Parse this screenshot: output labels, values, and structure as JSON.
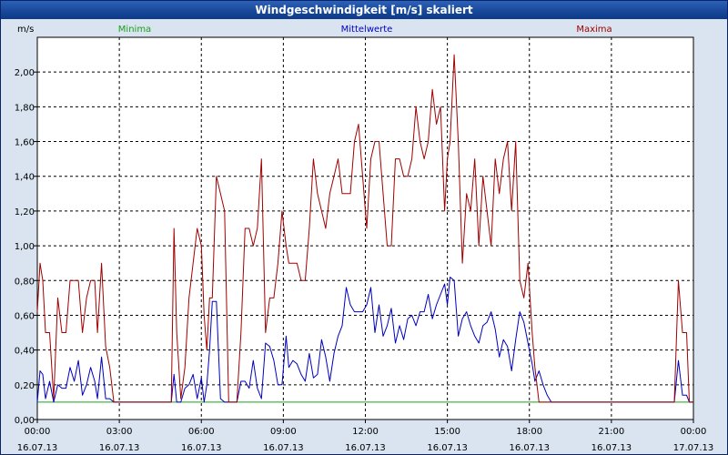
{
  "window": {
    "title": "Windgeschwindigkeit [m/s] skaliert"
  },
  "colors": {
    "minima": "#19a019",
    "mittelwerte": "#0000c0",
    "maxima": "#a00000",
    "background": "#ffffff",
    "grid": "#000000"
  },
  "chart_data": {
    "type": "line",
    "title": "Windgeschwindigkeit [m/s] skaliert",
    "ylabel": "m/s",
    "ylim": [
      0,
      2.2
    ],
    "xlim": [
      "16.07.13 00:00",
      "17.07.13 00:00"
    ],
    "grid": true,
    "yticks": [
      {
        "value": 0.0,
        "label": "0,00"
      },
      {
        "value": 0.2,
        "label": "0,20"
      },
      {
        "value": 0.4,
        "label": "0,40"
      },
      {
        "value": 0.6,
        "label": "0,60"
      },
      {
        "value": 0.8,
        "label": "0,80"
      },
      {
        "value": 1.0,
        "label": "1,00"
      },
      {
        "value": 1.2,
        "label": "1,20"
      },
      {
        "value": 1.4,
        "label": "1,40"
      },
      {
        "value": 1.6,
        "label": "1,60"
      },
      {
        "value": 1.8,
        "label": "1,80"
      },
      {
        "value": 2.0,
        "label": "2,00"
      }
    ],
    "xticks": [
      {
        "hour": 0,
        "time": "00:00",
        "date": "16.07.13"
      },
      {
        "hour": 3,
        "time": "03:00",
        "date": "16.07.13"
      },
      {
        "hour": 6,
        "time": "06:00",
        "date": "16.07.13"
      },
      {
        "hour": 9,
        "time": "09:00",
        "date": "16.07.13"
      },
      {
        "hour": 12,
        "time": "12:00",
        "date": "16.07.13"
      },
      {
        "hour": 15,
        "time": "15:00",
        "date": "16.07.13"
      },
      {
        "hour": 18,
        "time": "18:00",
        "date": "16.07.13"
      },
      {
        "hour": 21,
        "time": "21:00",
        "date": "16.07.13"
      },
      {
        "hour": 24,
        "time": "00:00",
        "date": "17.07.13"
      }
    ],
    "legend": [
      "Minima",
      "Mittelwerte",
      "Maxima"
    ],
    "series": [
      {
        "name": "Minima",
        "color": "#19a019",
        "points": [
          [
            0,
            0.1
          ],
          [
            24,
            0.1
          ]
        ]
      },
      {
        "name": "Mittelwerte",
        "color": "#0000c0",
        "points": [
          [
            0,
            0.1
          ],
          [
            0.1,
            0.28
          ],
          [
            0.2,
            0.26
          ],
          [
            0.3,
            0.12
          ],
          [
            0.45,
            0.22
          ],
          [
            0.6,
            0.1
          ],
          [
            0.75,
            0.2
          ],
          [
            0.9,
            0.18
          ],
          [
            1.05,
            0.18
          ],
          [
            1.2,
            0.3
          ],
          [
            1.35,
            0.22
          ],
          [
            1.5,
            0.34
          ],
          [
            1.65,
            0.14
          ],
          [
            1.8,
            0.2
          ],
          [
            1.95,
            0.3
          ],
          [
            2.1,
            0.22
          ],
          [
            2.2,
            0.12
          ],
          [
            2.35,
            0.36
          ],
          [
            2.5,
            0.12
          ],
          [
            2.65,
            0.12
          ],
          [
            2.8,
            0.1
          ],
          [
            4.9,
            0.1
          ],
          [
            5.0,
            0.26
          ],
          [
            5.1,
            0.1
          ],
          [
            5.25,
            0.1
          ],
          [
            5.4,
            0.18
          ],
          [
            5.55,
            0.2
          ],
          [
            5.7,
            0.26
          ],
          [
            5.85,
            0.12
          ],
          [
            6.0,
            0.24
          ],
          [
            6.1,
            0.1
          ],
          [
            6.2,
            0.2
          ],
          [
            6.3,
            0.4
          ],
          [
            6.4,
            0.68
          ],
          [
            6.55,
            0.68
          ],
          [
            6.7,
            0.12
          ],
          [
            6.85,
            0.1
          ],
          [
            7.3,
            0.1
          ],
          [
            7.45,
            0.22
          ],
          [
            7.6,
            0.22
          ],
          [
            7.75,
            0.18
          ],
          [
            7.9,
            0.34
          ],
          [
            8.05,
            0.18
          ],
          [
            8.2,
            0.12
          ],
          [
            8.35,
            0.44
          ],
          [
            8.5,
            0.42
          ],
          [
            8.65,
            0.34
          ],
          [
            8.8,
            0.2
          ],
          [
            8.95,
            0.2
          ],
          [
            9.1,
            0.48
          ],
          [
            9.2,
            0.3
          ],
          [
            9.35,
            0.34
          ],
          [
            9.5,
            0.32
          ],
          [
            9.65,
            0.26
          ],
          [
            9.8,
            0.22
          ],
          [
            9.95,
            0.38
          ],
          [
            10.1,
            0.24
          ],
          [
            10.25,
            0.26
          ],
          [
            10.4,
            0.46
          ],
          [
            10.55,
            0.36
          ],
          [
            10.7,
            0.22
          ],
          [
            10.85,
            0.38
          ],
          [
            11.0,
            0.48
          ],
          [
            11.15,
            0.54
          ],
          [
            11.3,
            0.76
          ],
          [
            11.45,
            0.66
          ],
          [
            11.6,
            0.62
          ],
          [
            11.75,
            0.62
          ],
          [
            11.9,
            0.62
          ],
          [
            12.05,
            0.66
          ],
          [
            12.2,
            0.76
          ],
          [
            12.35,
            0.5
          ],
          [
            12.5,
            0.66
          ],
          [
            12.65,
            0.48
          ],
          [
            12.8,
            0.54
          ],
          [
            12.95,
            0.64
          ],
          [
            13.1,
            0.44
          ],
          [
            13.25,
            0.54
          ],
          [
            13.4,
            0.46
          ],
          [
            13.55,
            0.58
          ],
          [
            13.7,
            0.6
          ],
          [
            13.85,
            0.54
          ],
          [
            14.0,
            0.62
          ],
          [
            14.15,
            0.62
          ],
          [
            14.3,
            0.72
          ],
          [
            14.45,
            0.58
          ],
          [
            14.6,
            0.66
          ],
          [
            14.75,
            0.72
          ],
          [
            14.9,
            0.78
          ],
          [
            15.0,
            0.66
          ],
          [
            15.1,
            0.82
          ],
          [
            15.25,
            0.8
          ],
          [
            15.4,
            0.48
          ],
          [
            15.55,
            0.58
          ],
          [
            15.7,
            0.62
          ],
          [
            15.85,
            0.54
          ],
          [
            16.0,
            0.48
          ],
          [
            16.15,
            0.44
          ],
          [
            16.3,
            0.54
          ],
          [
            16.45,
            0.56
          ],
          [
            16.6,
            0.62
          ],
          [
            16.75,
            0.52
          ],
          [
            16.9,
            0.36
          ],
          [
            17.05,
            0.46
          ],
          [
            17.2,
            0.42
          ],
          [
            17.35,
            0.28
          ],
          [
            17.5,
            0.46
          ],
          [
            17.65,
            0.62
          ],
          [
            17.8,
            0.56
          ],
          [
            17.95,
            0.44
          ],
          [
            18.1,
            0.32
          ],
          [
            18.2,
            0.22
          ],
          [
            18.35,
            0.28
          ],
          [
            18.5,
            0.2
          ],
          [
            18.65,
            0.14
          ],
          [
            18.8,
            0.1
          ],
          [
            23.3,
            0.1
          ],
          [
            23.45,
            0.34
          ],
          [
            23.6,
            0.14
          ],
          [
            23.75,
            0.14
          ],
          [
            23.85,
            0.1
          ],
          [
            24,
            0.1
          ]
        ]
      },
      {
        "name": "Maxima",
        "color": "#a00000",
        "points": [
          [
            0,
            0.62
          ],
          [
            0.1,
            0.9
          ],
          [
            0.2,
            0.8
          ],
          [
            0.3,
            0.5
          ],
          [
            0.45,
            0.5
          ],
          [
            0.6,
            0.12
          ],
          [
            0.75,
            0.7
          ],
          [
            0.9,
            0.5
          ],
          [
            1.05,
            0.5
          ],
          [
            1.2,
            0.8
          ],
          [
            1.35,
            0.8
          ],
          [
            1.5,
            0.8
          ],
          [
            1.65,
            0.5
          ],
          [
            1.8,
            0.7
          ],
          [
            1.95,
            0.8
          ],
          [
            2.1,
            0.8
          ],
          [
            2.2,
            0.5
          ],
          [
            2.35,
            0.9
          ],
          [
            2.5,
            0.42
          ],
          [
            2.65,
            0.3
          ],
          [
            2.8,
            0.1
          ],
          [
            4.9,
            0.1
          ],
          [
            5.0,
            1.1
          ],
          [
            5.1,
            0.5
          ],
          [
            5.25,
            0.12
          ],
          [
            5.4,
            0.3
          ],
          [
            5.55,
            0.7
          ],
          [
            5.7,
            0.9
          ],
          [
            5.85,
            1.1
          ],
          [
            6.0,
            1.0
          ],
          [
            6.1,
            0.6
          ],
          [
            6.2,
            0.4
          ],
          [
            6.3,
            0.7
          ],
          [
            6.4,
            0.7
          ],
          [
            6.55,
            1.4
          ],
          [
            6.7,
            1.3
          ],
          [
            6.85,
            1.2
          ],
          [
            7.0,
            0.1
          ],
          [
            7.3,
            0.1
          ],
          [
            7.45,
            0.5
          ],
          [
            7.6,
            1.1
          ],
          [
            7.75,
            1.1
          ],
          [
            7.9,
            1.0
          ],
          [
            8.05,
            1.1
          ],
          [
            8.2,
            1.5
          ],
          [
            8.35,
            0.5
          ],
          [
            8.5,
            0.7
          ],
          [
            8.65,
            0.7
          ],
          [
            8.8,
            0.9
          ],
          [
            8.95,
            1.2
          ],
          [
            9.1,
            1.0
          ],
          [
            9.2,
            0.9
          ],
          [
            9.35,
            0.9
          ],
          [
            9.5,
            0.9
          ],
          [
            9.65,
            0.8
          ],
          [
            9.8,
            0.8
          ],
          [
            9.95,
            1.1
          ],
          [
            10.1,
            1.5
          ],
          [
            10.25,
            1.3
          ],
          [
            10.4,
            1.2
          ],
          [
            10.55,
            1.1
          ],
          [
            10.7,
            1.3
          ],
          [
            10.85,
            1.4
          ],
          [
            11.0,
            1.5
          ],
          [
            11.15,
            1.3
          ],
          [
            11.3,
            1.3
          ],
          [
            11.45,
            1.3
          ],
          [
            11.6,
            1.6
          ],
          [
            11.75,
            1.7
          ],
          [
            11.9,
            1.4
          ],
          [
            12.05,
            1.1
          ],
          [
            12.2,
            1.5
          ],
          [
            12.35,
            1.6
          ],
          [
            12.5,
            1.6
          ],
          [
            12.65,
            1.3
          ],
          [
            12.8,
            1.0
          ],
          [
            12.95,
            1.0
          ],
          [
            13.1,
            1.5
          ],
          [
            13.25,
            1.5
          ],
          [
            13.4,
            1.4
          ],
          [
            13.55,
            1.4
          ],
          [
            13.7,
            1.5
          ],
          [
            13.85,
            1.8
          ],
          [
            14.0,
            1.6
          ],
          [
            14.15,
            1.5
          ],
          [
            14.3,
            1.6
          ],
          [
            14.45,
            1.9
          ],
          [
            14.6,
            1.7
          ],
          [
            14.75,
            1.8
          ],
          [
            14.9,
            1.2
          ],
          [
            15.0,
            1.5
          ],
          [
            15.1,
            1.6
          ],
          [
            15.25,
            2.1
          ],
          [
            15.4,
            1.6
          ],
          [
            15.55,
            0.9
          ],
          [
            15.7,
            1.3
          ],
          [
            15.85,
            1.2
          ],
          [
            16.0,
            1.5
          ],
          [
            16.15,
            1.0
          ],
          [
            16.3,
            1.4
          ],
          [
            16.45,
            1.2
          ],
          [
            16.6,
            1.0
          ],
          [
            16.75,
            1.5
          ],
          [
            16.9,
            1.3
          ],
          [
            17.05,
            1.5
          ],
          [
            17.2,
            1.6
          ],
          [
            17.35,
            1.2
          ],
          [
            17.5,
            1.6
          ],
          [
            17.65,
            0.8
          ],
          [
            17.8,
            0.7
          ],
          [
            17.95,
            0.9
          ],
          [
            18.1,
            0.5
          ],
          [
            18.2,
            0.3
          ],
          [
            18.35,
            0.1
          ],
          [
            23.3,
            0.1
          ],
          [
            23.45,
            0.8
          ],
          [
            23.6,
            0.5
          ],
          [
            23.75,
            0.5
          ],
          [
            23.85,
            0.1
          ],
          [
            24,
            0.1
          ]
        ]
      }
    ]
  }
}
